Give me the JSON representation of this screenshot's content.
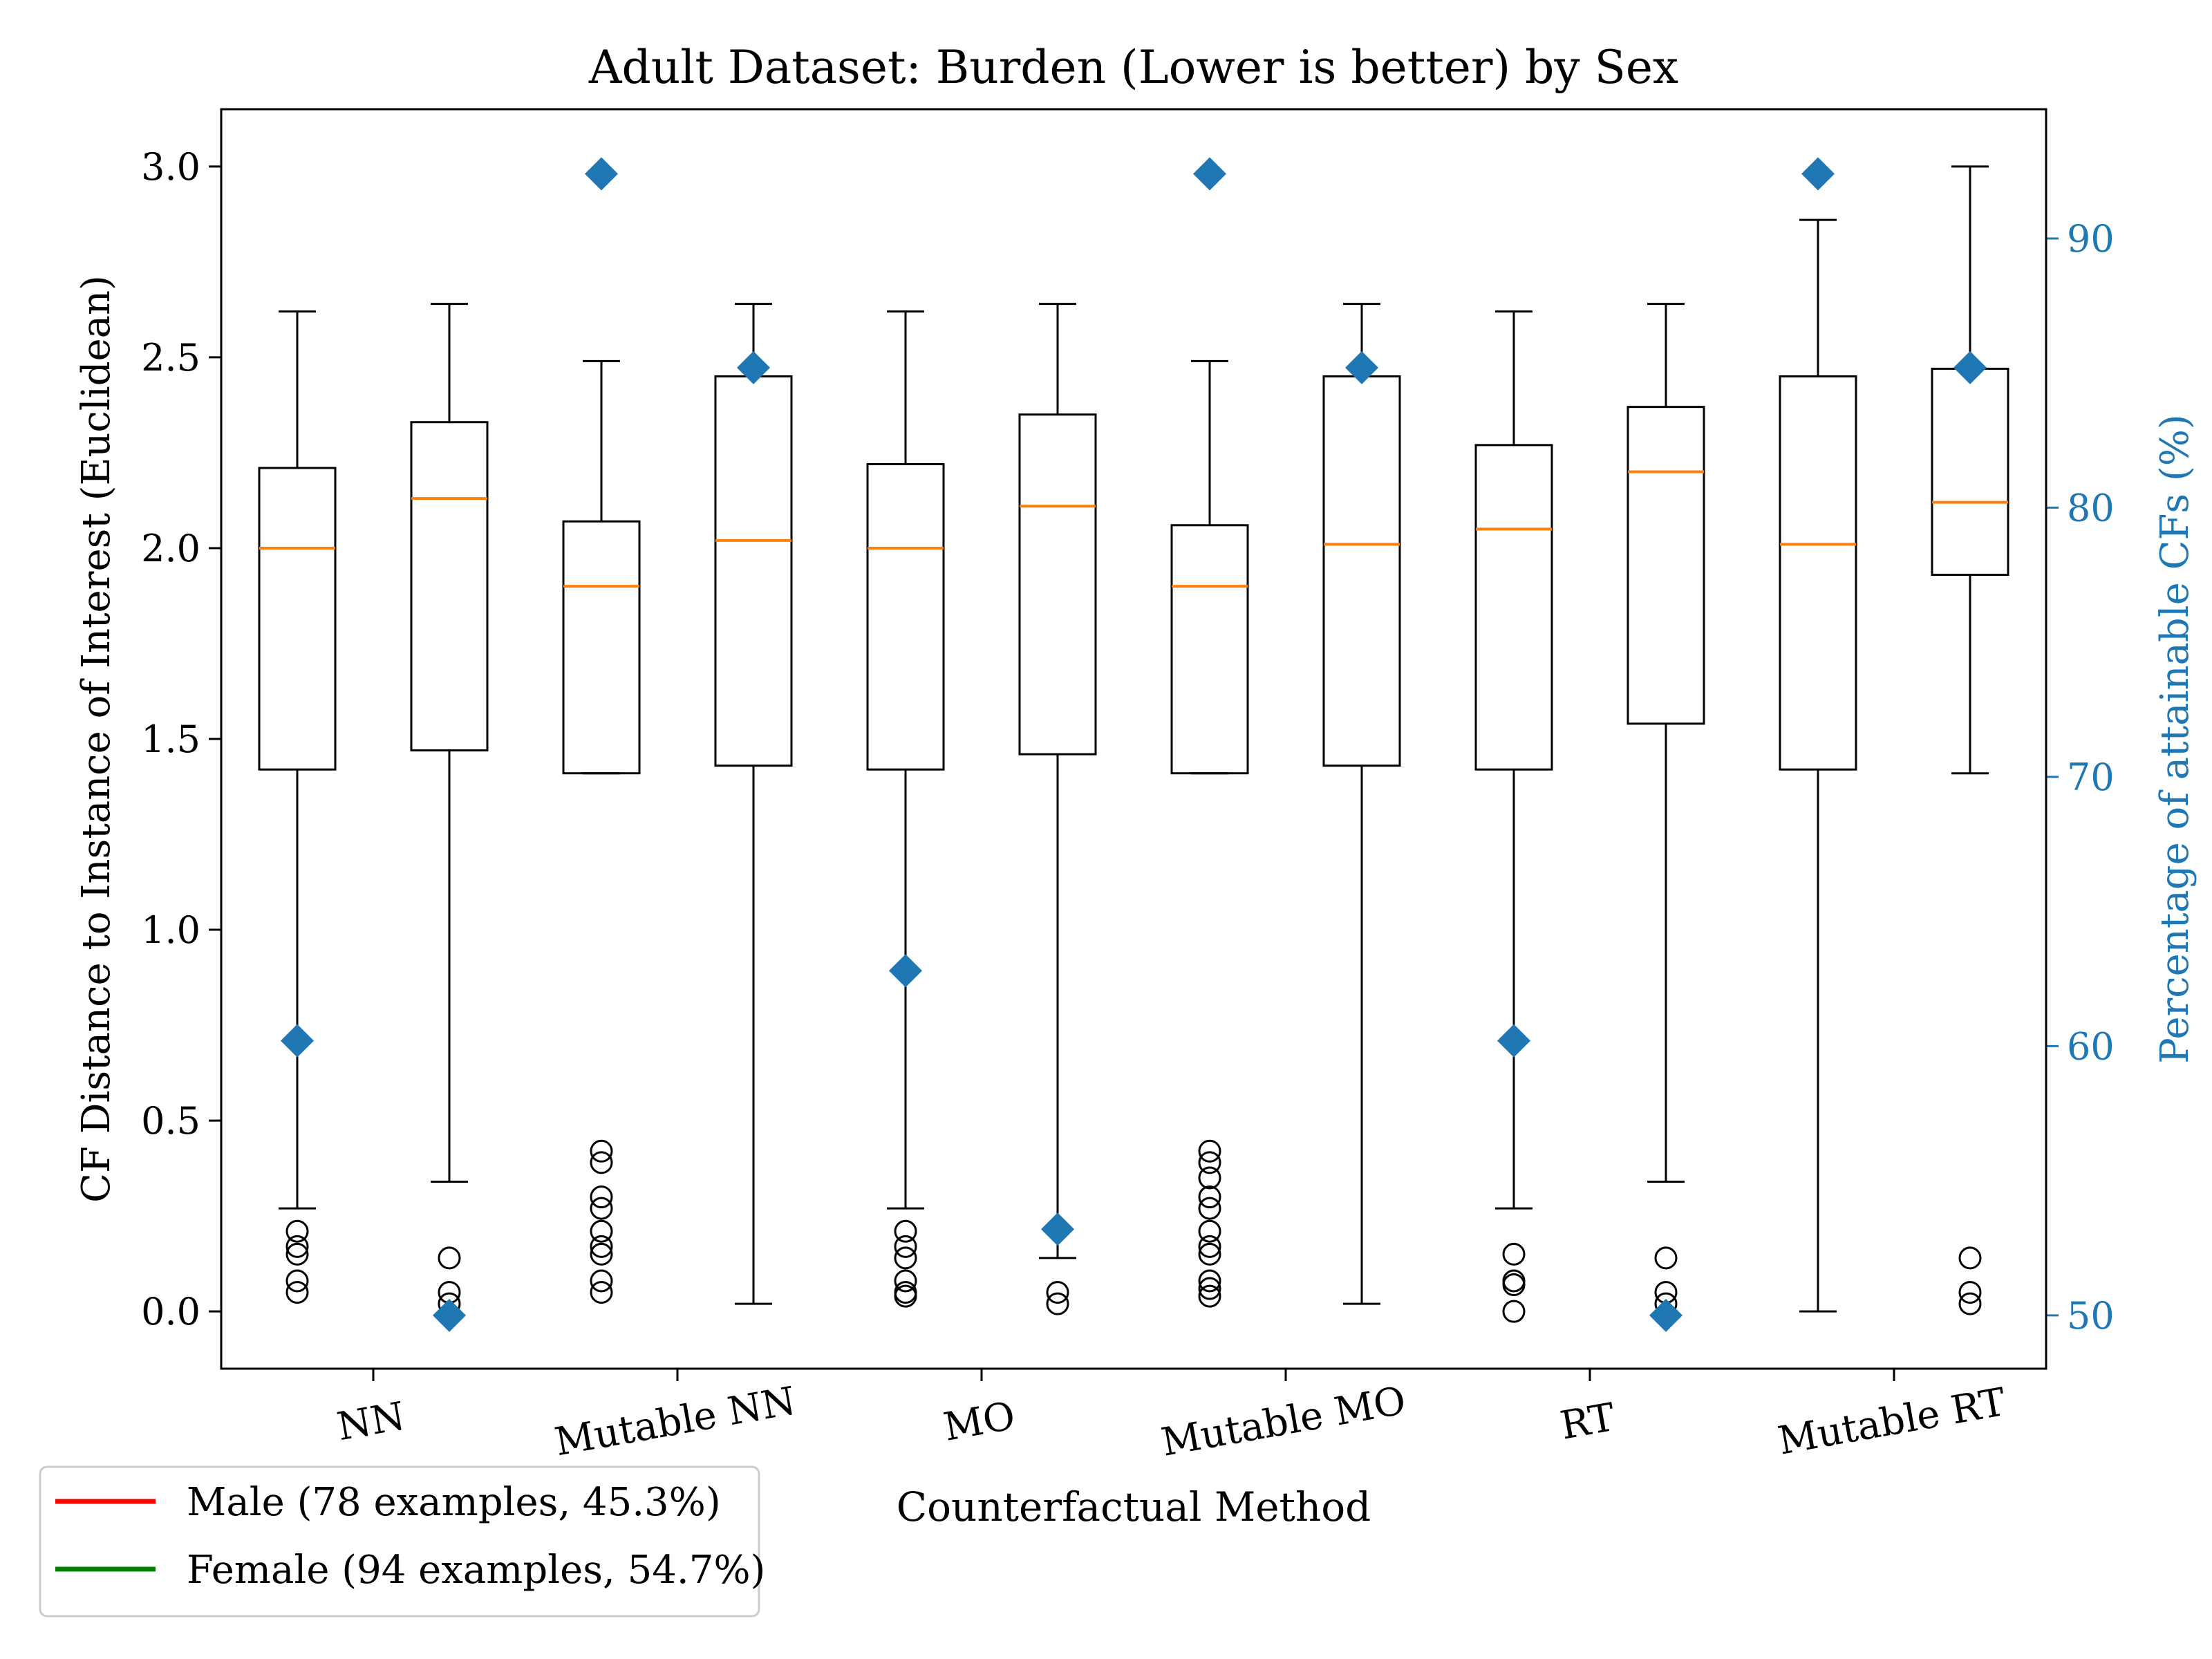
{
  "chart_data": {
    "type": "box",
    "title": "Adult Dataset: Burden (Lower is better) by Sex",
    "xlabel": "Counterfactual Method",
    "ylabel": "CF Distance to Instance of Interest (Euclidean)",
    "y2label": "Percentage of attainable CFs (%)",
    "ylim": [
      -0.15,
      3.15
    ],
    "y2lim": [
      48.02,
      94.8
    ],
    "yticks": [
      "0.0",
      "0.5",
      "1.0",
      "1.5",
      "2.0",
      "2.5",
      "3.0"
    ],
    "y2ticks": [
      "50",
      "60",
      "70",
      "80",
      "90"
    ],
    "categories": [
      "NN",
      "Mutable NN",
      "MO",
      "Mutable MO",
      "RT",
      "Mutable RT"
    ],
    "boxes": [
      {
        "whisker_low": 0.27,
        "q1": 1.42,
        "median": 2.0,
        "q3": 2.21,
        "whisker_high": 2.62,
        "outliers": [
          0.21,
          0.17,
          0.15,
          0.08,
          0.05
        ],
        "attainable_pct": 60.2
      },
      {
        "whisker_low": 0.34,
        "q1": 1.47,
        "median": 2.13,
        "q3": 2.33,
        "whisker_high": 2.64,
        "outliers": [
          0.14,
          0.05,
          0.02
        ],
        "attainable_pct": 50.0
      },
      {
        "whisker_low": 1.41,
        "q1": 1.41,
        "median": 1.9,
        "q3": 2.07,
        "whisker_high": 2.49,
        "outliers": [
          0.42,
          0.39,
          0.3,
          0.27,
          0.21,
          0.17,
          0.15,
          0.08,
          0.05
        ],
        "attainable_pct": 92.4
      },
      {
        "whisker_low": 0.02,
        "q1": 1.43,
        "median": 2.02,
        "q3": 2.45,
        "whisker_high": 2.64,
        "outliers": [],
        "attainable_pct": 85.2
      },
      {
        "whisker_low": 0.27,
        "q1": 1.42,
        "median": 2.0,
        "q3": 2.22,
        "whisker_high": 2.62,
        "outliers": [
          0.21,
          0.17,
          0.14,
          0.08,
          0.05,
          0.04
        ],
        "attainable_pct": 62.8
      },
      {
        "whisker_low": 0.14,
        "q1": 1.46,
        "median": 2.11,
        "q3": 2.35,
        "whisker_high": 2.64,
        "outliers": [
          0.05,
          0.02
        ],
        "attainable_pct": 53.2
      },
      {
        "whisker_low": 1.41,
        "q1": 1.41,
        "median": 1.9,
        "q3": 2.06,
        "whisker_high": 2.49,
        "outliers": [
          0.42,
          0.39,
          0.35,
          0.3,
          0.27,
          0.21,
          0.17,
          0.15,
          0.08,
          0.06,
          0.04
        ],
        "attainable_pct": 92.4
      },
      {
        "whisker_low": 0.02,
        "q1": 1.43,
        "median": 2.01,
        "q3": 2.45,
        "whisker_high": 2.64,
        "outliers": [],
        "attainable_pct": 85.2
      },
      {
        "whisker_low": 0.27,
        "q1": 1.42,
        "median": 2.05,
        "q3": 2.27,
        "whisker_high": 2.62,
        "outliers": [
          0.15,
          0.08,
          0.07,
          0.0
        ],
        "attainable_pct": 60.2
      },
      {
        "whisker_low": 0.34,
        "q1": 1.54,
        "median": 2.2,
        "q3": 2.37,
        "whisker_high": 2.64,
        "outliers": [
          0.14,
          0.05,
          0.02
        ],
        "attainable_pct": 50.0
      },
      {
        "whisker_low": 0.0,
        "q1": 1.42,
        "median": 2.01,
        "q3": 2.45,
        "whisker_high": 2.86,
        "outliers": [],
        "attainable_pct": 92.4
      },
      {
        "whisker_low": 1.41,
        "q1": 1.93,
        "median": 2.12,
        "q3": 2.47,
        "whisker_high": 3.0,
        "outliers": [
          0.14,
          0.05,
          0.02
        ],
        "attainable_pct": 85.2
      }
    ],
    "legend": {
      "placement": "below-left",
      "entries": [
        {
          "label": "Male (78 examples, 45.3%)",
          "color": "#ff0000"
        },
        {
          "label": "Female (94 examples, 54.7%)",
          "color": "#008000"
        }
      ]
    },
    "colors": {
      "median": "#ff7f0e",
      "marker": "#1f77b4",
      "box": "#000000"
    },
    "grid": false
  }
}
